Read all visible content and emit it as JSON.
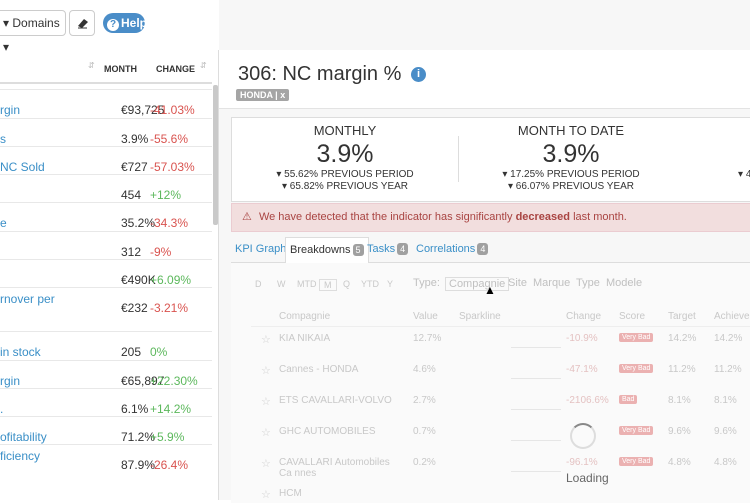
{
  "toolbar": {
    "domains": "Domains",
    "help": "Help"
  },
  "left_table": {
    "headers": [
      "MONTH",
      "CHANGE"
    ],
    "rows": [
      {
        "name": "rgin",
        "month": "€93,725",
        "change": "-41.03%"
      },
      {
        "name": "s",
        "month": "3.9%",
        "change": "-55.6%"
      },
      {
        "name": "NC Sold",
        "month": "€727",
        "change": "-57.03%"
      },
      {
        "month": "454",
        "change": "+12%"
      },
      {
        "name": "e",
        "month": "35.2%",
        "change": "-34.3%"
      },
      {
        "month": "312",
        "change": "-9%"
      },
      {
        "month": "€490K",
        "change": "+6.09%"
      },
      {
        "name": "rnover per",
        "month": "€232",
        "change": "-3.21%"
      },
      {
        "name": "in stock",
        "month": "205",
        "change": "0%"
      },
      {
        "name": "rgin",
        "month": "€65,897",
        "change": "+22.30%"
      },
      {
        "name": ".",
        "month": "6.1%",
        "change": "+14.2%"
      },
      {
        "name": "ofitability",
        "month": "71.2%",
        "change": "+5.9%"
      },
      {
        "name": "ficiency",
        "month": "87.9%",
        "change": "-26.4%"
      }
    ]
  },
  "kpi": {
    "title": "306: NC margin %",
    "tag": "HONDA",
    "tag_close": "x",
    "cards": [
      {
        "label": "MONTHLY",
        "value": "3.9%",
        "previous_period": "55.62% PREVIOUS PERIOD",
        "previous_year": "65.82% PREVIOUS YEAR"
      },
      {
        "label": "MONTH TO DATE",
        "value": "3.9%",
        "previous_period": "17.25% PREVIOUS PERIOD",
        "previous_year": "66.07% PREVIOUS YEAR"
      },
      {
        "previous_period": "4"
      }
    ]
  },
  "alert": {
    "before": "We have detected that the indicator has significantly",
    "bold": "decreased",
    "after": "last month."
  },
  "tabs": [
    {
      "label": "KPI Graph"
    },
    {
      "label": "Breakdowns",
      "count": "5"
    },
    {
      "label": "Tasks",
      "count": "4"
    },
    {
      "label": "Correlations",
      "count": "4"
    }
  ],
  "breakdown": {
    "periods": [
      "D",
      "W",
      "MTD",
      "M",
      "Q",
      "YTD",
      "Y"
    ],
    "type_label": "Type:",
    "types": [
      "Compagnie",
      "Site",
      "Marque",
      "Type",
      "Modele"
    ],
    "headers": [
      "Compagnie",
      "Value",
      "Sparkline",
      "Change",
      "Score",
      "Target",
      "Achieve"
    ],
    "rows": [
      {
        "name": "KIA NIKAIA",
        "value": "12.7%",
        "change": "-10.9%",
        "score": "Very Bad",
        "target": "14.2%",
        "achieve": "14.2%"
      },
      {
        "name": "Cannes - HONDA",
        "value": "4.6%",
        "change": "-47.1%",
        "score": "Very Bad",
        "target": "11.2%",
        "achieve": "11.2%"
      },
      {
        "name": "ETS CAVALLARI-VOLVO",
        "value": "2.7%",
        "change": "-2106.6%",
        "score": "Bad",
        "target": "8.1%",
        "achieve": "8.1%"
      },
      {
        "name": "GHC AUTOMOBILES",
        "value": "0.7%",
        "score": "Very Bad",
        "target": "9.6%",
        "achieve": "9.6%"
      },
      {
        "name": "CAVALLARI Automobiles Ca nnes",
        "value": "0.2%",
        "change": "-96.1%",
        "score": "Very Bad",
        "target": "4.8%",
        "achieve": "4.8%"
      },
      {
        "name": "HCM"
      }
    ],
    "loading": "Loading"
  }
}
